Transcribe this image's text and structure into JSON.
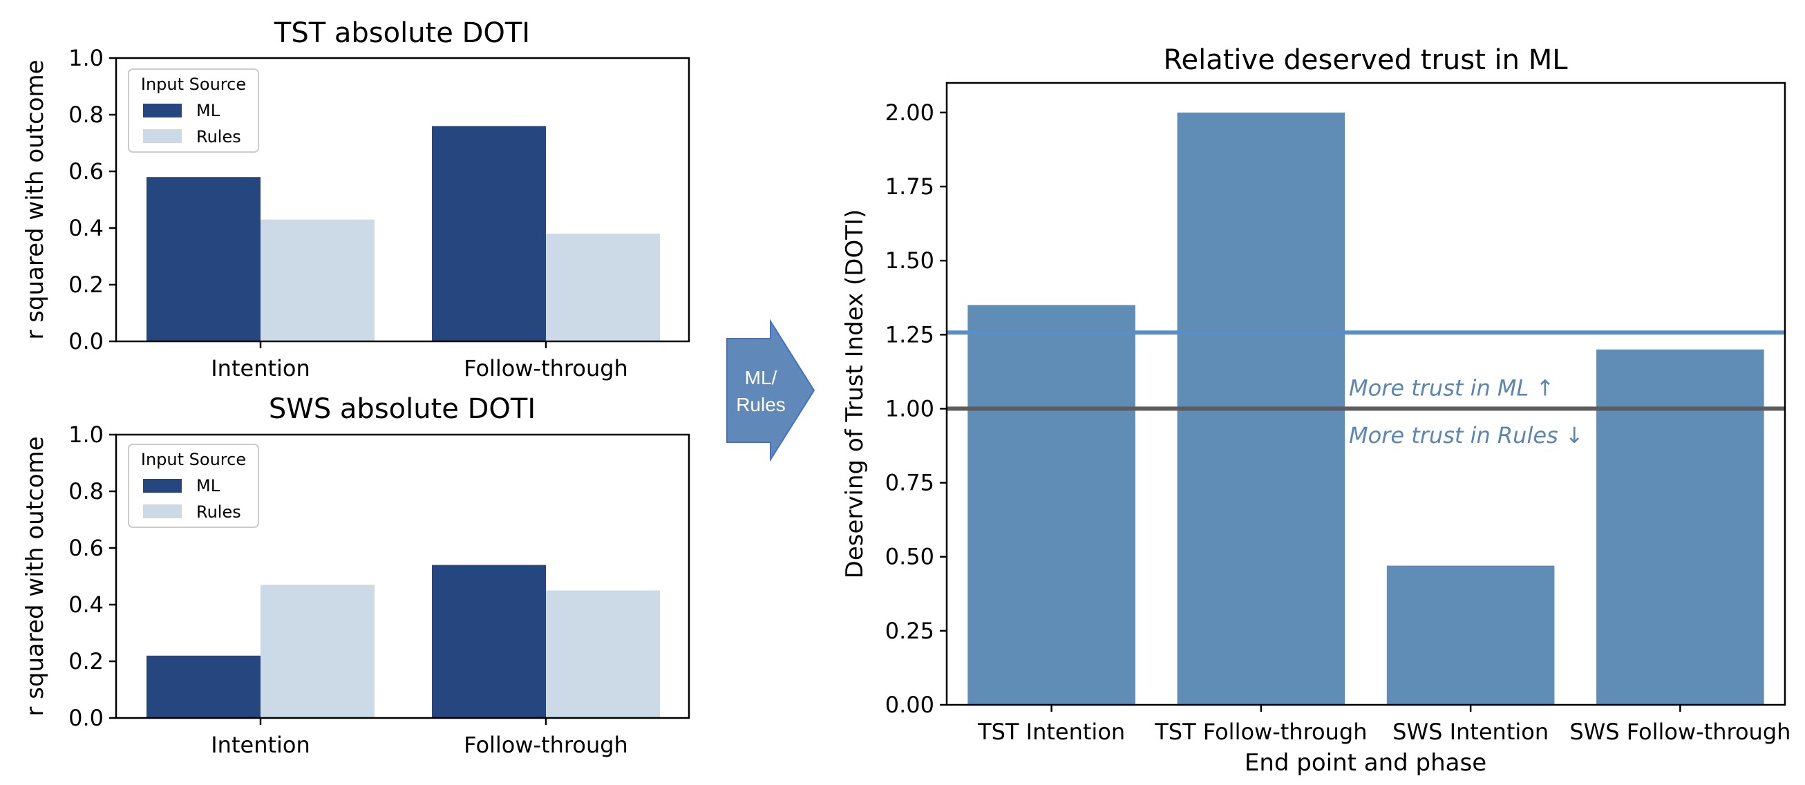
{
  "colors": {
    "ml": "#26467F",
    "rules": "#CCDAE7",
    "relative_bar": "#5F8DB5",
    "ref_line_ml": "#5A8FC3",
    "ref_line_one": "#5C5C5C",
    "annotation": "#5A86B0",
    "arrow": "#6088B8",
    "arrow_edge": "#4472C4"
  },
  "arrow": {
    "line1": "ML/",
    "line2": "Rules"
  },
  "chart_data": [
    {
      "id": "tst",
      "type": "bar",
      "title": "TST absolute DOTI",
      "xlabel": "",
      "ylabel": "r squared with outcome",
      "categories": [
        "Intention",
        "Follow-through"
      ],
      "series": [
        {
          "name": "ML",
          "values": [
            0.58,
            0.76
          ]
        },
        {
          "name": "Rules",
          "values": [
            0.43,
            0.38
          ]
        }
      ],
      "ylim": [
        0,
        1
      ],
      "yticks": [
        "0.0",
        "0.2",
        "0.4",
        "0.6",
        "0.8",
        "1.0"
      ],
      "legend": {
        "title": "Input Source",
        "placement": "top-left"
      }
    },
    {
      "id": "sws",
      "type": "bar",
      "title": "SWS absolute DOTI",
      "xlabel": "",
      "ylabel": "r squared with outcome",
      "categories": [
        "Intention",
        "Follow-through"
      ],
      "series": [
        {
          "name": "ML",
          "values": [
            0.22,
            0.54
          ]
        },
        {
          "name": "Rules",
          "values": [
            0.47,
            0.45
          ]
        }
      ],
      "ylim": [
        0,
        1
      ],
      "yticks": [
        "0.0",
        "0.2",
        "0.4",
        "0.6",
        "0.8",
        "1.0"
      ],
      "legend": {
        "title": "Input Source",
        "placement": "top-left"
      }
    },
    {
      "id": "relative",
      "type": "bar",
      "title": "Relative deserved trust in ML",
      "xlabel": "End point and phase",
      "ylabel": "Deserving of Trust Index (DOTI)",
      "categories": [
        "TST Intention",
        "TST Follow-through",
        "SWS Intention",
        "SWS Follow-through"
      ],
      "values": [
        1.35,
        2.0,
        0.47,
        1.2
      ],
      "ylim": [
        0,
        2.1
      ],
      "yticks": [
        "0.00",
        "0.25",
        "0.50",
        "0.75",
        "1.00",
        "1.25",
        "1.50",
        "1.75",
        "2.00"
      ],
      "reference_lines": [
        {
          "name": "ml-mean",
          "y": 1.257
        },
        {
          "name": "parity",
          "y": 1.0
        }
      ],
      "annotations": [
        {
          "text": "More trust in ML ↑",
          "y": 1.07
        },
        {
          "text": "More trust in Rules ↓",
          "y": 0.91
        }
      ]
    }
  ]
}
